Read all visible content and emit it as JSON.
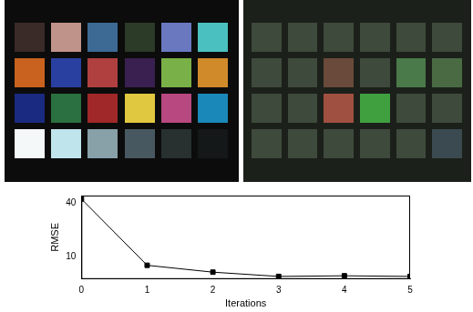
{
  "chart_data": {
    "type": "line",
    "x": [
      0,
      1,
      2,
      3,
      4,
      5
    ],
    "values": [
      44,
      8.1,
      6.8,
      6.1,
      6.2,
      6.1
    ],
    "color": "#000000",
    "marker": "square",
    "line_style": "solid",
    "x_label": "Iterations",
    "y_label": "RMSE",
    "xlim": [
      0,
      5
    ],
    "xticks": [
      0,
      1,
      2,
      3,
      4,
      5
    ],
    "ylim": [
      5.7,
      48
    ],
    "yticks": [
      10,
      40
    ],
    "log": "y",
    "grid": false
  }
}
